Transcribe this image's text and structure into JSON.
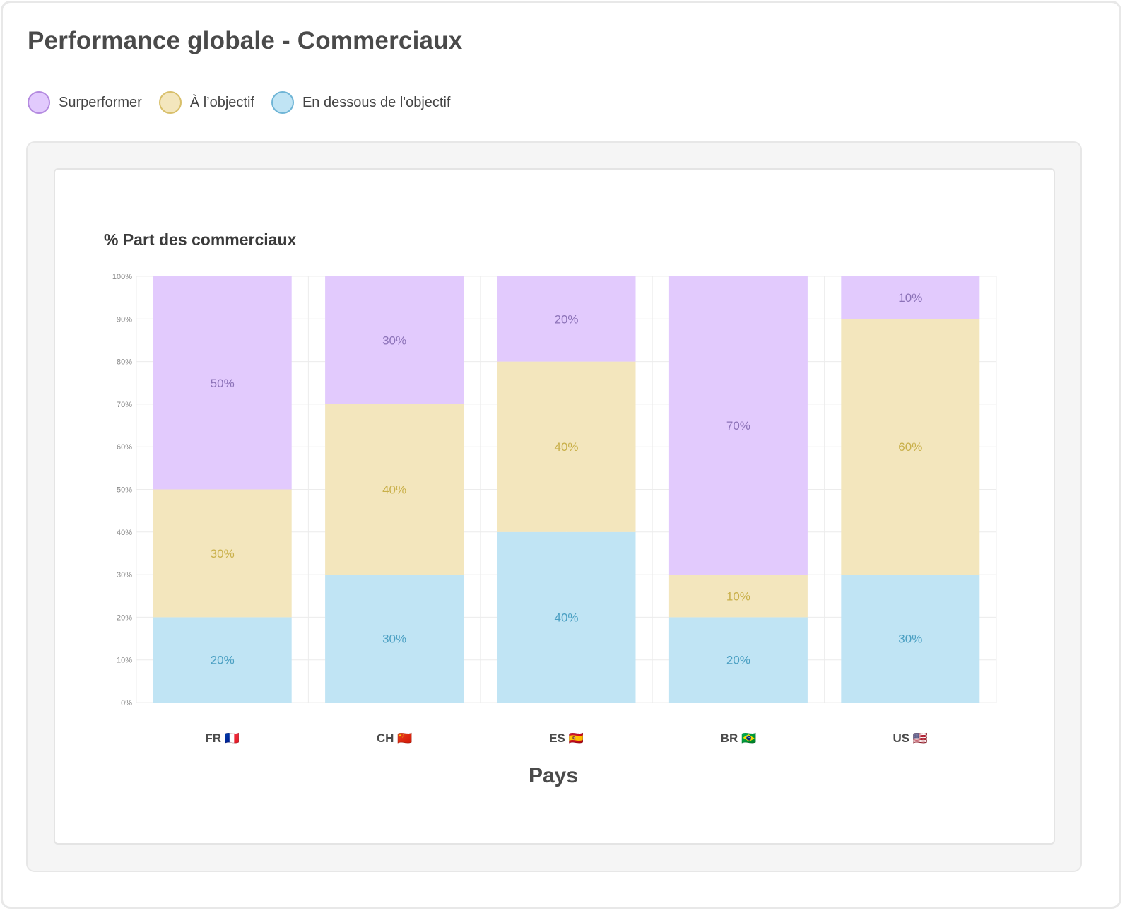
{
  "title": "Performance globale - Commerciaux",
  "legend": [
    {
      "label": "Surperformer",
      "fill": "#e2cafd",
      "stroke": "#b48ae0"
    },
    {
      "label": "À l’objectif",
      "fill": "#f3e6bd",
      "stroke": "#d8bf6a"
    },
    {
      "label": "En dessous de l'objectif",
      "fill": "#c0e4f4",
      "stroke": "#6fb5d6"
    }
  ],
  "chart_data": {
    "type": "bar",
    "stacked": true,
    "title": "",
    "ylabel": "% Part des commerciaux",
    "xlabel": "Pays",
    "ylim": [
      0,
      100
    ],
    "yticks": [
      "0%",
      "10%",
      "20%",
      "30%",
      "40%",
      "50%",
      "60%",
      "70%",
      "80%",
      "90%",
      "100%"
    ],
    "categories": [
      "FR 🇫🇷",
      "CH 🇨🇳",
      "ES 🇪🇸",
      "BR 🇧🇷",
      "US 🇺🇸"
    ],
    "series": [
      {
        "name": "En dessous de l'objectif",
        "values": [
          20,
          30,
          40,
          20,
          30
        ],
        "labels": [
          "20%",
          "30%",
          "40%",
          "20%",
          "30%"
        ],
        "color": "#c0e4f4",
        "text_color": "#4a9fc2"
      },
      {
        "name": "À l’objectif",
        "values": [
          30,
          40,
          40,
          10,
          60
        ],
        "labels": [
          "30%",
          "40%",
          "40%",
          "10%",
          "60%"
        ],
        "color": "#f3e6bd",
        "text_color": "#c9b04a"
      },
      {
        "name": "Surperformer",
        "values": [
          50,
          30,
          20,
          70,
          10
        ],
        "labels": [
          "50%",
          "30%",
          "20%",
          "70%",
          "10%"
        ],
        "color": "#e2cafd",
        "text_color": "#8c72b8"
      }
    ],
    "grid": true
  }
}
